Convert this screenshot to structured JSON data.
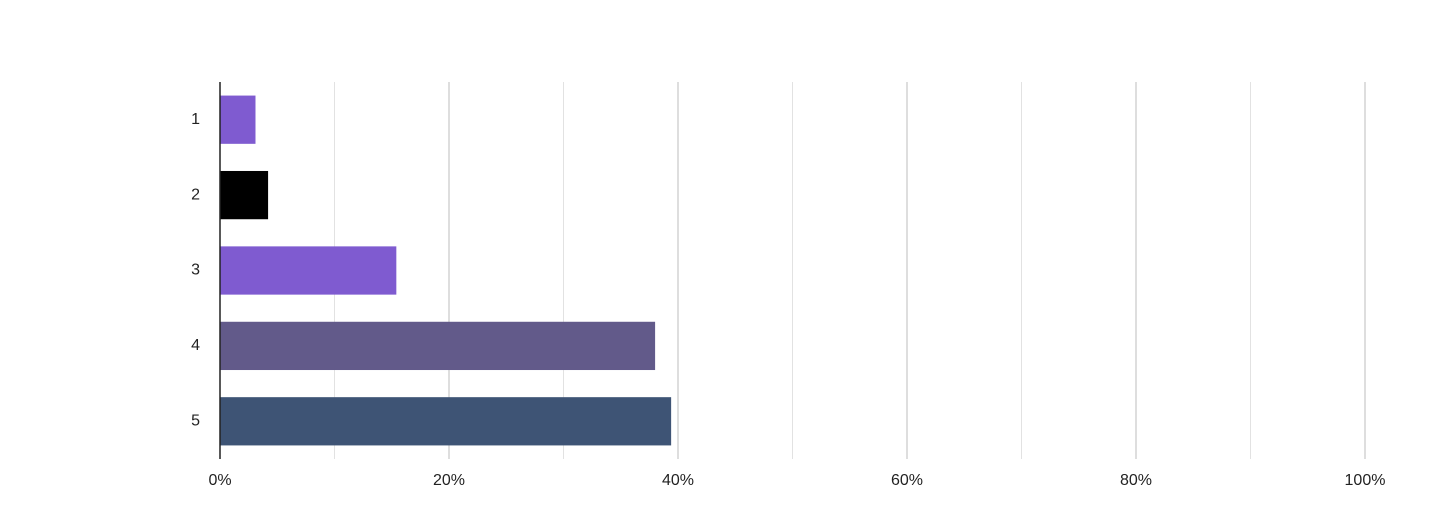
{
  "chart_data": {
    "type": "hbar",
    "categories": [
      "1",
      "2",
      "3",
      "4",
      "5"
    ],
    "values": [
      3.1,
      4.2,
      15.4,
      38.0,
      39.4
    ],
    "colors": [
      "#7f5bd0",
      "#000000",
      "#7f5bd0",
      "#625a8a",
      "#3e5475"
    ],
    "xlim": [
      0,
      100
    ],
    "xticks": [
      {
        "value": 0,
        "label": "0%"
      },
      {
        "value": 20,
        "label": "20%"
      },
      {
        "value": 40,
        "label": "40%"
      },
      {
        "value": 60,
        "label": "60%"
      },
      {
        "value": 80,
        "label": "80%"
      },
      {
        "value": 100,
        "label": "100%"
      }
    ],
    "minor_grid": [
      10,
      30,
      50,
      70,
      90
    ],
    "grid": true
  }
}
